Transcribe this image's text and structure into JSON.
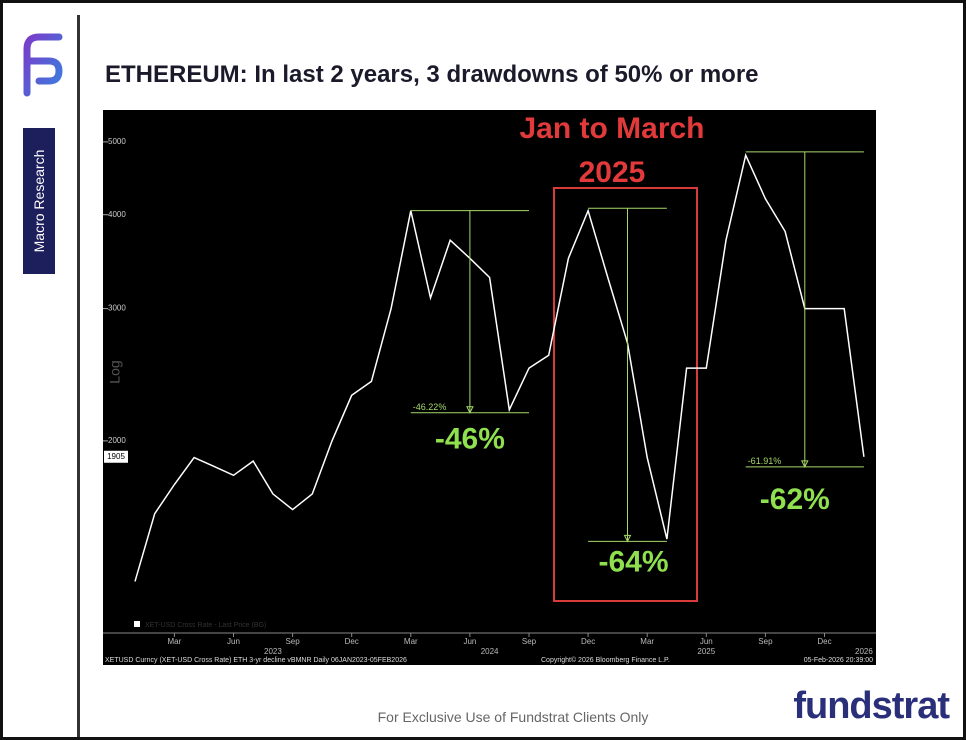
{
  "header": {
    "title": "ETHEREUM: In last 2 years, 3 drawdowns of 50% or more",
    "section": "Macro Research"
  },
  "footer": {
    "note": "For Exclusive Use of Fundstrat Clients Only",
    "brand": "fundstrat"
  },
  "chart_data": {
    "type": "line",
    "log_scale": true,
    "grid": false,
    "y_label": "Log",
    "x": [
      "2023-01",
      "2023-02",
      "2023-03",
      "2023-04",
      "2023-05",
      "2023-06",
      "2023-07",
      "2023-08",
      "2023-09",
      "2023-10",
      "2023-11",
      "2023-12",
      "2024-01",
      "2024-02",
      "2024-03",
      "2024-04",
      "2024-05",
      "2024-06",
      "2024-07",
      "2024-08",
      "2024-09",
      "2024-10",
      "2024-11",
      "2024-12",
      "2025-01",
      "2025-02",
      "2025-03",
      "2025-04",
      "2025-05",
      "2025-06",
      "2025-07",
      "2025-08",
      "2025-09",
      "2025-10",
      "2025-11",
      "2025-12",
      "2026-01",
      "2026-02"
    ],
    "series": [
      {
        "name": "XET-USD Cross Rate - Last Price (BG)",
        "color": "#ffffff",
        "values": [
          1300,
          1600,
          1750,
          1900,
          1850,
          1800,
          1880,
          1700,
          1620,
          1700,
          2000,
          2300,
          2400,
          3000,
          4050,
          3100,
          3700,
          3500,
          3300,
          2200,
          2500,
          2600,
          3500,
          4050,
          3300,
          2700,
          1900,
          1480,
          2500,
          2500,
          3700,
          4800,
          4200,
          3800,
          3000,
          3000,
          3000,
          1905
        ]
      }
    ],
    "ylim": [
      1110,
      5380
    ],
    "yticks": [
      2000,
      3000,
      4000,
      5000
    ],
    "xticks": [
      {
        "value": "2023-03",
        "label": "Mar"
      },
      {
        "value": "2023-06",
        "label": "Jun"
      },
      {
        "value": "2023-09",
        "label": "Sep"
      },
      {
        "value": "2023-12",
        "label": "Dec"
      },
      {
        "value": "2024-03",
        "label": "Mar"
      },
      {
        "value": "2024-06",
        "label": "Jun"
      },
      {
        "value": "2024-09",
        "label": "Sep"
      },
      {
        "value": "2024-12",
        "label": "Dec"
      },
      {
        "value": "2025-03",
        "label": "Mar"
      },
      {
        "value": "2025-06",
        "label": "Jun"
      },
      {
        "value": "2025-09",
        "label": "Sep"
      },
      {
        "value": "2025-12",
        "label": "Dec"
      }
    ],
    "years": [
      {
        "value": "2023-08",
        "label": "2023"
      },
      {
        "value": "2024-07",
        "label": "2024"
      },
      {
        "value": "2025-06",
        "label": "2025"
      },
      {
        "value": "2026-02",
        "label": "2026"
      }
    ],
    "drawdowns": [
      {
        "high": 4050,
        "low": 2180,
        "from": "2024-03",
        "to": "2024-09",
        "at": "2024-06",
        "label": "-46.22%",
        "callout": "-46%"
      },
      {
        "high": 4080,
        "low": 1470,
        "from": "2024-12",
        "to": "2025-04",
        "at": "2025-02",
        "label": "-64%",
        "callout": "-64%"
      },
      {
        "high": 4850,
        "low": 1847,
        "from": "2025-08",
        "to": "2026-02",
        "at": "2025-11",
        "label": "-61.91%",
        "callout": "-62%"
      }
    ],
    "highlight": [
      "Jan to March",
      "2025"
    ],
    "source": "XETUSD Curncy (XET-USD Cross Rate) ETH 3-yr decline vBMNR Daily 06JAN2023-05FEB2026",
    "copyright": "Copyright© 2026 Bloomberg Finance L.P.",
    "timestamp": "05-Feb-2026 20:39:00"
  }
}
